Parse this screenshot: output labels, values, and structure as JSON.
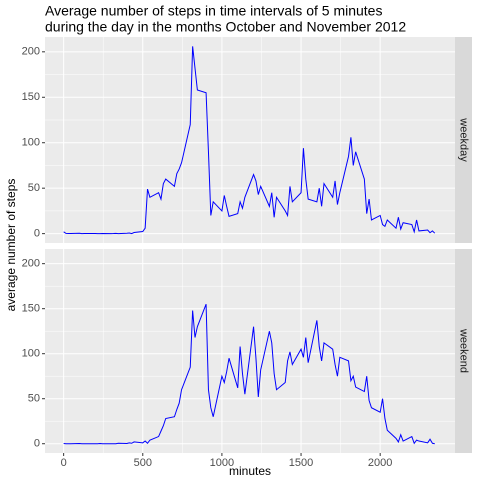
{
  "chart_data": {
    "type": "line",
    "facet": "rows",
    "title": [
      "Average number of steps in time intervals of 5 minutes",
      "during the day in the months October and November 2012"
    ],
    "xlabel": "minutes",
    "ylabel": "average number of steps",
    "x": [
      0,
      15,
      30,
      45,
      100,
      115,
      130,
      145,
      200,
      215,
      230,
      245,
      300,
      315,
      330,
      345,
      400,
      415,
      430,
      445,
      500,
      515,
      530,
      545,
      600,
      615,
      630,
      645,
      700,
      715,
      730,
      745,
      800,
      815,
      830,
      845,
      900,
      915,
      930,
      945,
      1000,
      1015,
      1030,
      1045,
      1100,
      1115,
      1130,
      1145,
      1200,
      1215,
      1230,
      1245,
      1300,
      1315,
      1330,
      1345,
      1400,
      1415,
      1430,
      1445,
      1500,
      1515,
      1530,
      1545,
      1600,
      1615,
      1630,
      1645,
      1700,
      1715,
      1730,
      1745,
      1800,
      1815,
      1830,
      1845,
      1900,
      1915,
      1930,
      1945,
      2000,
      2015,
      2030,
      2045,
      2100,
      2115,
      2130,
      2145,
      2200,
      2215,
      2230,
      2245,
      2300,
      2315,
      2330,
      2345
    ],
    "xlim": [
      -117.75,
      2472.75
    ],
    "xticks": [
      0,
      500,
      1000,
      1500,
      2000
    ],
    "ylim": [
      -10.3,
      216.3
    ],
    "yticks": [
      0,
      50,
      100,
      150,
      200
    ],
    "grid": true,
    "series": [
      {
        "name": "weekday",
        "color": "#0000ff",
        "values": [
          2,
          0.3,
          0.2,
          0.1,
          0.4,
          0,
          0.2,
          0.1,
          0.1,
          0,
          0,
          0.2,
          0,
          0.1,
          0.3,
          0,
          0.4,
          0.7,
          0.1,
          1.2,
          2.3,
          6,
          49,
          40,
          45,
          38,
          55,
          60,
          52,
          66,
          71,
          78,
          120,
          206,
          182,
          158,
          155,
          90,
          20,
          35,
          25,
          42,
          30,
          19,
          22,
          35,
          28,
          40,
          65,
          58,
          43,
          52,
          30,
          45,
          18,
          40,
          25,
          20,
          52,
          35,
          45,
          94,
          60,
          38,
          35,
          50,
          30,
          55,
          40,
          58,
          32,
          45,
          85,
          106,
          75,
          90,
          60,
          22,
          38,
          15,
          20,
          10,
          8,
          15,
          6,
          18,
          5,
          12,
          10,
          2,
          15,
          3,
          4,
          1,
          3,
          0.5
        ]
      },
      {
        "name": "weekend",
        "color": "#0000ff",
        "values": [
          0.2,
          0,
          0,
          0,
          0.3,
          0,
          0,
          0,
          0,
          0,
          0.2,
          0,
          0,
          0,
          0,
          0.5,
          0.3,
          1,
          0.5,
          2,
          1,
          3,
          0.5,
          4,
          8,
          14,
          20,
          28,
          30,
          38,
          45,
          60,
          85,
          148,
          118,
          130,
          155,
          60,
          40,
          30,
          75,
          68,
          80,
          95,
          62,
          108,
          78,
          55,
          130,
          95,
          52,
          82,
          125,
          112,
          78,
          60,
          68,
          92,
          102,
          88,
          105,
          96,
          118,
          90,
          137,
          108,
          92,
          112,
          105,
          88,
          75,
          96,
          92,
          70,
          75,
          63,
          58,
          75,
          48,
          40,
          35,
          50,
          28,
          15,
          6,
          2,
          10,
          3,
          8,
          0.5,
          4,
          3,
          1,
          5,
          0.5,
          0
        ]
      }
    ]
  }
}
